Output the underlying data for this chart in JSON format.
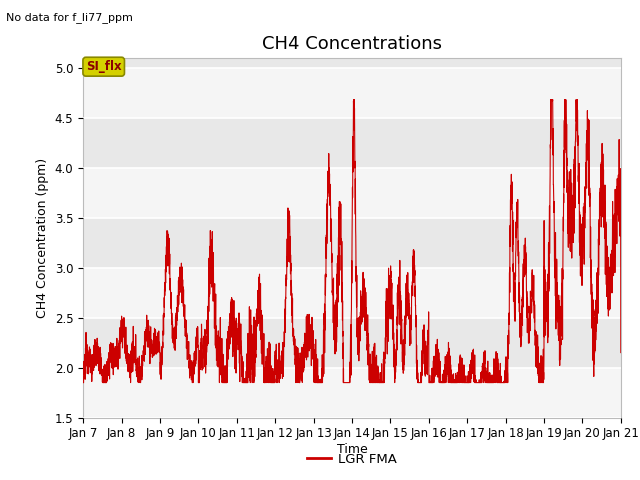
{
  "title": "CH4 Concentrations",
  "ylabel": "CH4 Concentration (ppm)",
  "xlabel": "Time",
  "ylim": [
    1.5,
    5.1
  ],
  "yticks": [
    1.5,
    2.0,
    2.5,
    3.0,
    3.5,
    4.0,
    4.5,
    5.0
  ],
  "x_tick_labels": [
    "Jan 7",
    "Jan 8",
    "Jan 9",
    "Jan 10",
    "Jan 11",
    "Jan 12",
    "Jan 13",
    "Jan 14",
    "Jan 15",
    "Jan 16",
    "Jan 17",
    "Jan 18",
    "Jan 19",
    "Jan 20",
    "Jan 21"
  ],
  "top_left_text": "No data for f_li77_ppm",
  "legend_label": "LGR FMA",
  "line_color": "#CC0000",
  "bg_color": "#FFFFFF",
  "axes_bg_color": "#E8E8E8",
  "band_color": "#DCDCDC",
  "si_flx_label": "SI_flx",
  "si_flx_text_color": "#8B0000",
  "si_flx_bg": "#D4D000",
  "si_flx_border": "#888800",
  "title_fontsize": 13,
  "label_fontsize": 9,
  "tick_fontsize": 8.5
}
